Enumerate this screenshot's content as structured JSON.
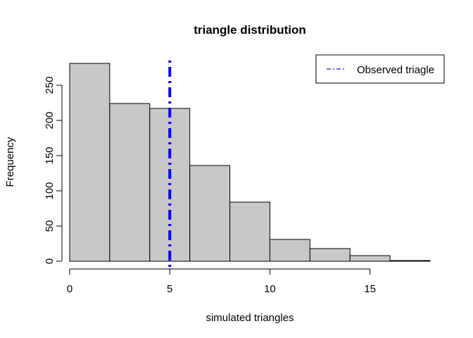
{
  "chart_data": {
    "type": "bar",
    "title": "triangle distribution",
    "xlabel": "simulated triangles",
    "ylabel": "Frequency",
    "bins": [
      {
        "x0": 0,
        "x1": 2,
        "count": 281
      },
      {
        "x0": 2,
        "x1": 4,
        "count": 224
      },
      {
        "x0": 4,
        "x1": 6,
        "count": 217
      },
      {
        "x0": 6,
        "x1": 8,
        "count": 136
      },
      {
        "x0": 8,
        "x1": 10,
        "count": 84
      },
      {
        "x0": 10,
        "x1": 12,
        "count": 31
      },
      {
        "x0": 12,
        "x1": 14,
        "count": 18
      },
      {
        "x0": 14,
        "x1": 16,
        "count": 8
      },
      {
        "x0": 16,
        "x1": 18,
        "count": 1
      }
    ],
    "xlim": [
      0,
      18
    ],
    "ylim": [
      0,
      281
    ],
    "xticks": [
      0,
      5,
      10,
      15
    ],
    "yticks": [
      0,
      50,
      100,
      150,
      200,
      250
    ],
    "observed_line": {
      "x": 5,
      "color": "#0000ff",
      "style": "dot-dash"
    },
    "legend": {
      "position": "top-right",
      "entries": [
        {
          "label": "Observed triagle",
          "color": "#0000ff",
          "style": "dot-dash"
        }
      ]
    },
    "bar_color": "#c8c8c8",
    "grid": false
  }
}
